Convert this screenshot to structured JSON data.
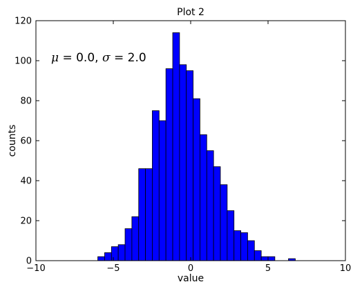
{
  "chart_data": {
    "type": "bar",
    "title": "Plot 2",
    "xlabel": "value",
    "ylabel": "counts",
    "xlim": [
      -10,
      10
    ],
    "ylim": [
      0,
      120
    ],
    "xticks": [
      -10,
      -5,
      0,
      5,
      10
    ],
    "xtick_labels": [
      "−10",
      "−5",
      "0",
      "5",
      "10"
    ],
    "yticks": [
      0,
      20,
      40,
      60,
      80,
      100,
      120
    ],
    "ytick_labels": [
      "0",
      "20",
      "40",
      "60",
      "80",
      "100",
      "120"
    ],
    "bin_edges": [
      -6.0,
      -5.56,
      -5.12,
      -4.68,
      -4.24,
      -3.8,
      -3.36,
      -2.92,
      -2.48,
      -2.04,
      -1.6,
      -1.16,
      -0.72,
      -0.28,
      0.16,
      0.6,
      1.04,
      1.48,
      1.92,
      2.36,
      2.8,
      3.24,
      3.68,
      4.12,
      4.56,
      5.0,
      5.44,
      5.88,
      6.32,
      6.76,
      7.2
    ],
    "counts": [
      2,
      4,
      7,
      8,
      16,
      22,
      46,
      46,
      75,
      70,
      96,
      114,
      98,
      95,
      81,
      63,
      55,
      47,
      38,
      25,
      15,
      14,
      10,
      5,
      2,
      2,
      0,
      0,
      1,
      0
    ],
    "bar_color": "#0000ff",
    "edge_color": "#000000",
    "grid": false,
    "annotation": {
      "mu_symbol": "μ",
      "mu_text": " = 0.0, ",
      "sigma_symbol": "σ",
      "sigma_text": " = 2.0"
    }
  }
}
